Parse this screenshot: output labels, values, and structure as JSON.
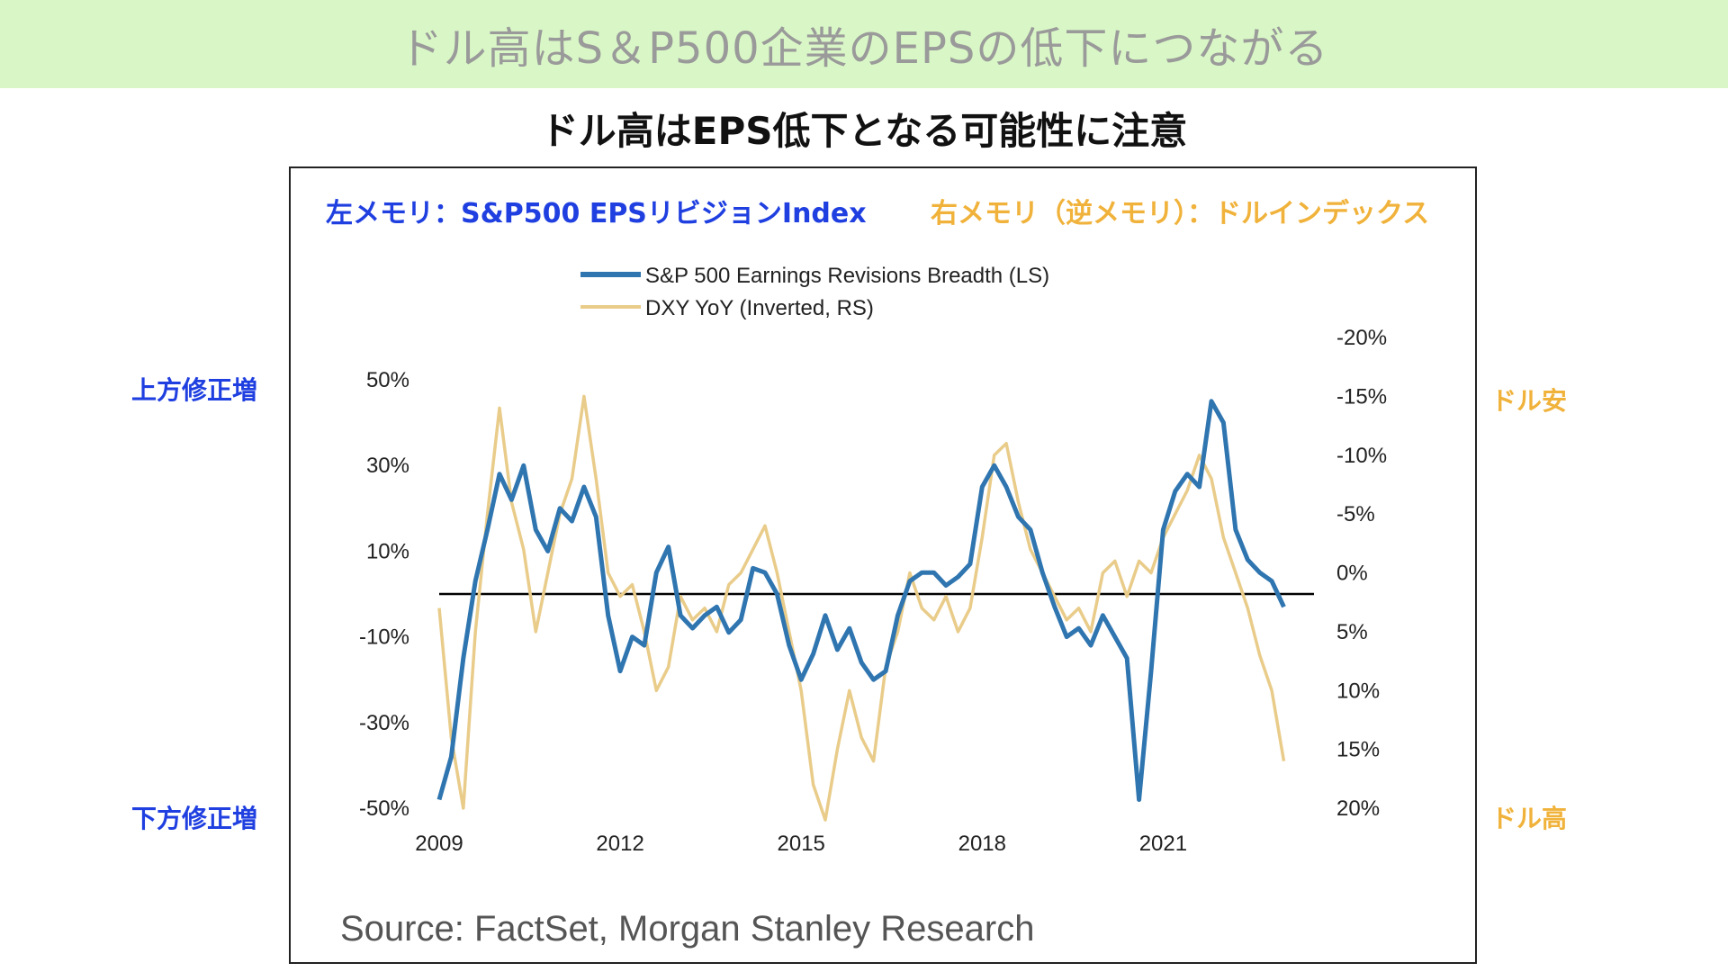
{
  "banner": {
    "title": "ドル高はS＆P500企業のEPSの低下につながる"
  },
  "subtitle": "ドル高はEPS低下となる可能性に注意",
  "annotations": {
    "left_memo": "左メモリ：S&P500 EPSリビジョンIndex",
    "right_memo": "右メモリ（逆メモリ）：ドルインデックス",
    "left_top": "上方修正増",
    "left_bottom": "下方修正増",
    "right_top": "ドル安",
    "right_bottom": "ドル高"
  },
  "source": "Source: FactSet, Morgan Stanley Research",
  "colors": {
    "eps": "#2f75b0",
    "dxy": "#e9cc8a",
    "zero_line": "#000000",
    "left_memo": "#1f3fe0",
    "right_memo": "#f0b23a"
  },
  "chart_data": {
    "type": "line",
    "title": "",
    "xlabel": "",
    "ylabel": "",
    "x_ticks": [
      "2009",
      "2012",
      "2015",
      "2018",
      "2021"
    ],
    "y_left_ticks": [
      "50%",
      "30%",
      "10%",
      "-10%",
      "-30%",
      "-50%"
    ],
    "y_left_range": [
      -50,
      50
    ],
    "y_right_ticks": [
      "-20%",
      "-15%",
      "-10%",
      "-5%",
      "0%",
      "5%",
      "10%",
      "15%",
      "20%"
    ],
    "y_right_range": [
      -20,
      20
    ],
    "y_right_inverted": true,
    "zero_line_left": 0,
    "legend_position": "top-center",
    "series": [
      {
        "name": "S&P 500 Earnings Revisions Breadth (LS)",
        "axis": "left",
        "x": [
          2009.0,
          2009.2,
          2009.4,
          2009.6,
          2009.8,
          2010.0,
          2010.2,
          2010.4,
          2010.6,
          2010.8,
          2011.0,
          2011.2,
          2011.4,
          2011.6,
          2011.8,
          2012.0,
          2012.2,
          2012.4,
          2012.6,
          2012.8,
          2013.0,
          2013.2,
          2013.4,
          2013.6,
          2013.8,
          2014.0,
          2014.2,
          2014.4,
          2014.6,
          2014.8,
          2015.0,
          2015.2,
          2015.4,
          2015.6,
          2015.8,
          2016.0,
          2016.2,
          2016.4,
          2016.6,
          2016.8,
          2017.0,
          2017.2,
          2017.4,
          2017.6,
          2017.8,
          2018.0,
          2018.2,
          2018.4,
          2018.6,
          2018.8,
          2019.0,
          2019.2,
          2019.4,
          2019.6,
          2019.8,
          2020.0,
          2020.2,
          2020.4,
          2020.6,
          2020.8,
          2021.0,
          2021.2,
          2021.4,
          2021.6,
          2021.8,
          2022.0,
          2022.2,
          2022.4,
          2022.6,
          2022.8,
          2023.0
        ],
        "values": [
          -48,
          -38,
          -15,
          3,
          15,
          28,
          22,
          30,
          15,
          10,
          20,
          17,
          25,
          18,
          -5,
          -18,
          -10,
          -12,
          5,
          11,
          -5,
          -8,
          -5,
          -3,
          -9,
          -6,
          6,
          5,
          0,
          -12,
          -20,
          -14,
          -5,
          -13,
          -8,
          -16,
          -20,
          -18,
          -5,
          3,
          5,
          5,
          2,
          4,
          7,
          25,
          30,
          25,
          18,
          15,
          5,
          -3,
          -10,
          -8,
          -12,
          -5,
          -10,
          -15,
          -48,
          -18,
          15,
          24,
          28,
          25,
          45,
          40,
          15,
          8,
          5,
          3,
          -3
        ]
      },
      {
        "name": "DXY YoY (Inverted, RS)",
        "axis": "right",
        "x": [
          2009.0,
          2009.2,
          2009.4,
          2009.6,
          2009.8,
          2010.0,
          2010.2,
          2010.4,
          2010.6,
          2010.8,
          2011.0,
          2011.2,
          2011.4,
          2011.6,
          2011.8,
          2012.0,
          2012.2,
          2012.4,
          2012.6,
          2012.8,
          2013.0,
          2013.2,
          2013.4,
          2013.6,
          2013.8,
          2014.0,
          2014.2,
          2014.4,
          2014.6,
          2014.8,
          2015.0,
          2015.2,
          2015.4,
          2015.6,
          2015.8,
          2016.0,
          2016.2,
          2016.4,
          2016.6,
          2016.8,
          2017.0,
          2017.2,
          2017.4,
          2017.6,
          2017.8,
          2018.0,
          2018.2,
          2018.4,
          2018.6,
          2018.8,
          2019.0,
          2019.2,
          2019.4,
          2019.6,
          2019.8,
          2020.0,
          2020.2,
          2020.4,
          2020.6,
          2020.8,
          2021.0,
          2021.2,
          2021.4,
          2021.6,
          2021.8,
          2022.0,
          2022.2,
          2022.4,
          2022.6,
          2022.8,
          2023.0
        ],
        "values": [
          3,
          14,
          20,
          5,
          -5,
          -14,
          -6,
          -2,
          5,
          0,
          -5,
          -8,
          -15,
          -8,
          0,
          2,
          1,
          5,
          10,
          8,
          2,
          4,
          3,
          5,
          1,
          0,
          -2,
          -4,
          0,
          5,
          10,
          18,
          21,
          15,
          10,
          14,
          16,
          8,
          5,
          0,
          3,
          4,
          2,
          5,
          3,
          -3,
          -10,
          -11,
          -6,
          -2,
          0,
          2,
          4,
          3,
          5,
          0,
          -1,
          2,
          -1,
          0,
          -3,
          -5,
          -7,
          -10,
          -8,
          -3,
          0,
          3,
          7,
          10,
          16
        ]
      }
    ]
  }
}
